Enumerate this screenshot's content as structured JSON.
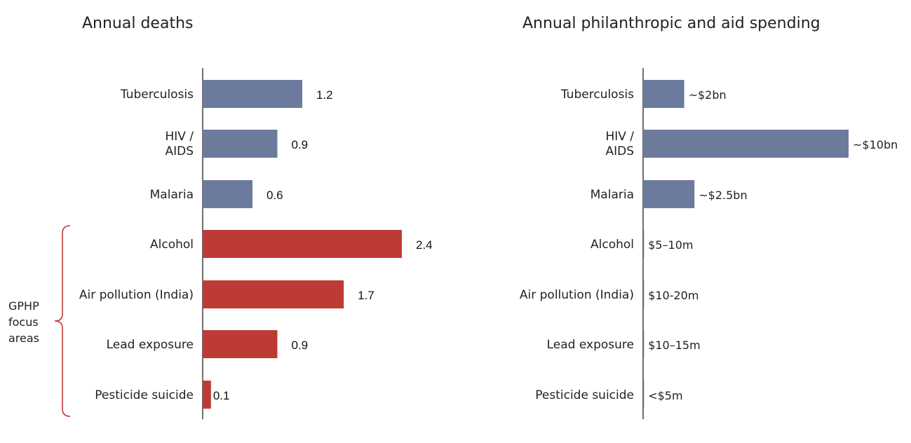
{
  "chart_data": [
    {
      "type": "bar",
      "orientation": "horizontal",
      "title": "Annual deaths",
      "categories": [
        "Tuberculosis",
        "HIV / AIDS",
        "Malaria",
        "Alcohol",
        "Air pollution (India)",
        "Lead exposure",
        "Pesticide suicide"
      ],
      "values": [
        1.2,
        0.9,
        0.6,
        2.4,
        1.7,
        0.9,
        0.1
      ],
      "data_labels": [
        "1.2",
        "0.9",
        "0.6",
        "2.4",
        "1.7",
        "0.9",
        "0.1"
      ],
      "xlim": [
        0,
        2.4
      ],
      "grid": false
    },
    {
      "type": "bar",
      "orientation": "horizontal",
      "title": "Annual philanthropic and aid spending",
      "categories": [
        "Tuberculosis",
        "HIV / AIDS",
        "Malaria",
        "Alcohol",
        "Air pollution (India)",
        "Lead exposure",
        "Pesticide suicide"
      ],
      "values_usd_bn": [
        2,
        10,
        2.5,
        0.0075,
        0.015,
        0.0125,
        0.0025
      ],
      "data_labels": [
        "~$2bn",
        "~$10bn",
        "~$2.5bn",
        "$5–10m",
        "$10-20m",
        "$10–15m",
        "<$5m"
      ],
      "xlim": [
        0,
        10
      ],
      "grid": false
    }
  ],
  "colors": {
    "disease_bar": "#6c7a9e",
    "focus_bar": "#be3b35",
    "axis": "#222222",
    "bracket": "#be3b35"
  },
  "focus_group": {
    "label_lines": [
      "GPHP",
      "focus",
      "areas"
    ],
    "category_indices": [
      3,
      4,
      5,
      6
    ]
  }
}
